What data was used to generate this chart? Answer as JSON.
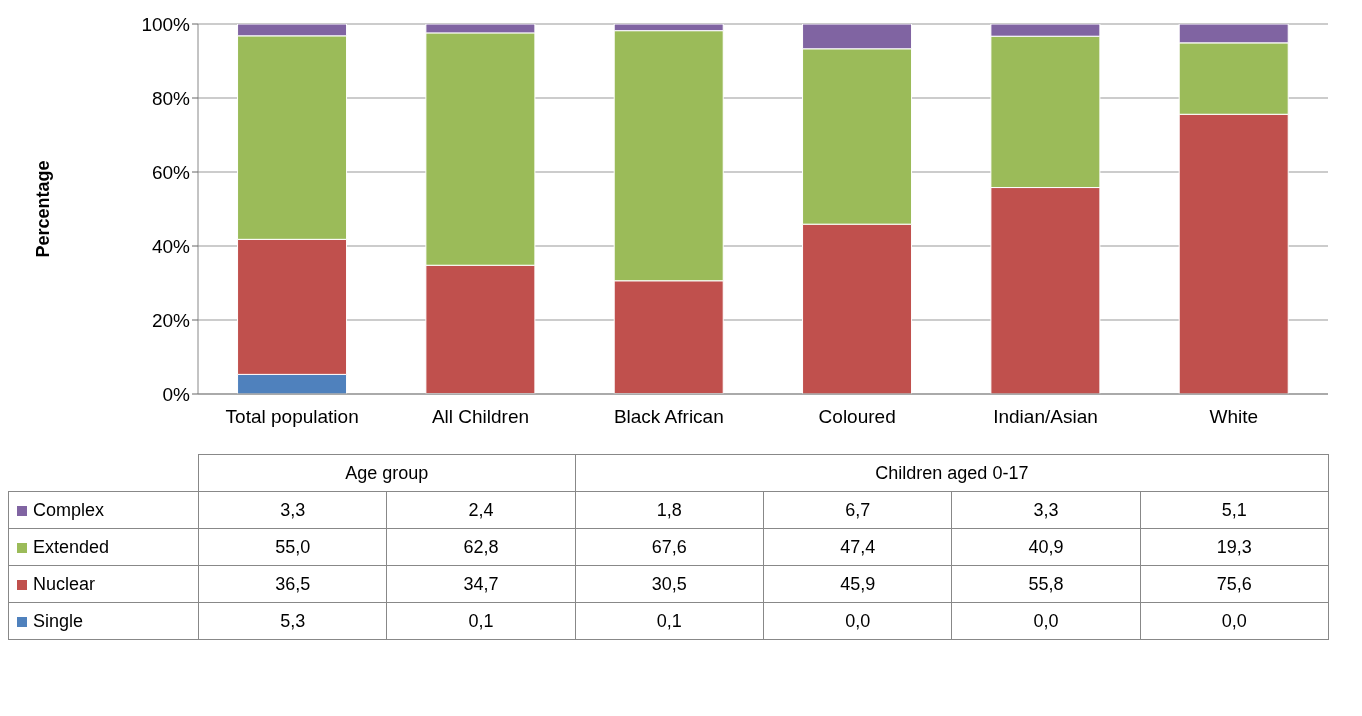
{
  "chart_data": {
    "type": "bar",
    "stacked": true,
    "ylabel": "Percentage",
    "categories": [
      "Total population",
      "All Children",
      "Black African",
      "Coloured",
      "Indian/Asian",
      "White"
    ],
    "series": [
      {
        "name": "Single",
        "color": "#4f81bd",
        "values": [
          5.3,
          0.1,
          0.1,
          0.0,
          0.0,
          0.0
        ],
        "value_labels": [
          "5,3",
          "0,1",
          "0,1",
          "0,0",
          "0,0",
          "0,0"
        ]
      },
      {
        "name": "Nuclear",
        "color": "#c0504d",
        "values": [
          36.5,
          34.7,
          30.5,
          45.9,
          55.8,
          75.6
        ],
        "value_labels": [
          "36,5",
          "34,7",
          "30,5",
          "45,9",
          "55,8",
          "75,6"
        ]
      },
      {
        "name": "Extended",
        "color": "#9bbb59",
        "values": [
          55.0,
          62.8,
          67.6,
          47.4,
          40.9,
          19.3
        ],
        "value_labels": [
          "55,0",
          "62,8",
          "67,6",
          "47,4",
          "40,9",
          "19,3"
        ]
      },
      {
        "name": "Complex",
        "color": "#8064a2",
        "values": [
          3.3,
          2.4,
          1.8,
          6.7,
          3.3,
          5.1
        ],
        "value_labels": [
          "3,3",
          "2,4",
          "1,8",
          "6,7",
          "3,3",
          "5,1"
        ]
      }
    ],
    "ylim": [
      0,
      100
    ],
    "yticks": [
      {
        "value": 0,
        "label": "0%"
      },
      {
        "value": 20,
        "label": "20%"
      },
      {
        "value": 40,
        "label": "40%"
      },
      {
        "value": 60,
        "label": "60%"
      },
      {
        "value": 80,
        "label": "80%"
      },
      {
        "value": 100,
        "label": "100%"
      }
    ],
    "grid": "y",
    "legend": "bottom",
    "annotations": [
      "Age group",
      "Children aged 0-17"
    ]
  }
}
